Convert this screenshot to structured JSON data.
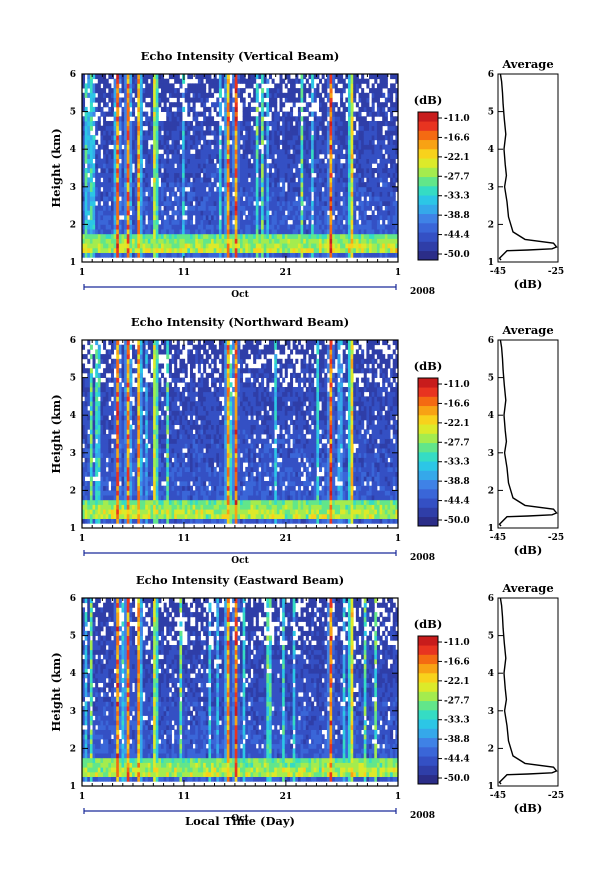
{
  "colormap": [
    "#2b2d88",
    "#2f3ea8",
    "#3450c4",
    "#3a66d8",
    "#3f82e6",
    "#35a8ea",
    "#2cc6e6",
    "#35dcc4",
    "#62e68a",
    "#a4ec4e",
    "#dcea2a",
    "#f8d21c",
    "#f8a214",
    "#f46a12",
    "#e83420",
    "#c81c1c"
  ],
  "colorbar": {
    "unit": "(dB)",
    "ticks": [
      "-11.0",
      "-16.6",
      "-22.1",
      "-27.7",
      "-33.3",
      "-38.8",
      "-44.4",
      "-50.0"
    ]
  },
  "panels": [
    {
      "title": "Echo Intensity (Vertical Beam)",
      "ylabel": "Height (km)",
      "yticks": [
        "1",
        "2",
        "3",
        "4",
        "5",
        "6"
      ],
      "xticks": [
        "1",
        "11",
        "21",
        "1"
      ],
      "month": "Oct",
      "year": "2008",
      "profile": {
        "title": "Average",
        "xticks": [
          "-45",
          "-25"
        ],
        "xlabel": "(dB)",
        "yticks": [
          "1",
          "2",
          "3",
          "4",
          "5",
          "6"
        ]
      }
    },
    {
      "title": "Echo Intensity (Northward Beam)",
      "ylabel": "Height (km)",
      "yticks": [
        "1",
        "2",
        "3",
        "4",
        "5",
        "6"
      ],
      "xticks": [
        "1",
        "11",
        "21",
        "1"
      ],
      "month": "Oct",
      "year": "2008",
      "profile": {
        "title": "Average",
        "xticks": [
          "-45",
          "-25"
        ],
        "xlabel": "(dB)",
        "yticks": [
          "1",
          "2",
          "3",
          "4",
          "5",
          "6"
        ]
      }
    },
    {
      "title": "Echo Intensity (Eastward Beam)",
      "ylabel": "Height (km)",
      "yticks": [
        "1",
        "2",
        "3",
        "4",
        "5",
        "6"
      ],
      "xticks": [
        "1",
        "11",
        "21",
        "1"
      ],
      "month": "Oct",
      "year": "2008",
      "profile": {
        "title": "Average",
        "xticks": [
          "-45",
          "-25"
        ],
        "xlabel": "(dB)",
        "yticks": [
          "1",
          "2",
          "3",
          "4",
          "5",
          "6"
        ]
      }
    }
  ],
  "xlabel": "Local Time (Day)",
  "chart_data": [
    {
      "type": "heatmap",
      "title": "Echo Intensity (Vertical Beam)",
      "xlabel": "",
      "ylabel": "Height (km)",
      "x_range_days": [
        "Oct 1 2008",
        "Nov 1 2008"
      ],
      "ylim": [
        1,
        6
      ],
      "color_range_db": [
        -50.0,
        -11.0
      ],
      "strong_echo_days": [
        4.5,
        5.5,
        6.6,
        8.2,
        15.3,
        16.1,
        25.4,
        27.4
      ],
      "surface_layer_height_km": 1.35
    },
    {
      "type": "heatmap",
      "title": "Echo Intensity (Northward Beam)",
      "xlabel": "",
      "ylabel": "Height (km)",
      "x_range_days": [
        "Oct 1 2008",
        "Nov 1 2008"
      ],
      "ylim": [
        1,
        6
      ],
      "color_range_db": [
        -50.0,
        -11.0
      ],
      "strong_echo_days": [
        4.5,
        5.5,
        6.6,
        8.2,
        15.3,
        16.1,
        25.4,
        27.4
      ],
      "surface_layer_height_km": 1.35
    },
    {
      "type": "heatmap",
      "title": "Echo Intensity (Eastward Beam)",
      "xlabel": "Local Time (Day)",
      "ylabel": "Height (km)",
      "x_range_days": [
        "Oct 1 2008",
        "Nov 1 2008"
      ],
      "ylim": [
        1,
        6
      ],
      "color_range_db": [
        -50.0,
        -11.0
      ],
      "strong_echo_days": [
        4.5,
        5.5,
        6.6,
        8.2,
        15.3,
        16.1,
        25.4,
        27.4
      ],
      "surface_layer_height_km": 1.35
    },
    {
      "type": "line",
      "title": "Average",
      "xlabel": "(dB)",
      "ylabel": "",
      "xlim": [
        -45,
        -25
      ],
      "ylim": [
        1,
        6
      ],
      "x": [
        -44.0,
        -44.5,
        -42.0,
        -35.0,
        -27.0,
        -25.5,
        -26.5,
        -36.0,
        -40.0,
        -41.5,
        -42.0,
        -42.8,
        -42.2,
        -42.6,
        -43.0,
        -42.4,
        -42.9,
        -43.3,
        -43.5,
        -43.8,
        -44.2
      ],
      "y": [
        1.05,
        1.1,
        1.3,
        1.32,
        1.35,
        1.4,
        1.5,
        1.6,
        1.8,
        2.2,
        2.6,
        3.0,
        3.3,
        3.6,
        4.0,
        4.4,
        4.8,
        5.2,
        5.5,
        5.8,
        6.0
      ]
    }
  ]
}
